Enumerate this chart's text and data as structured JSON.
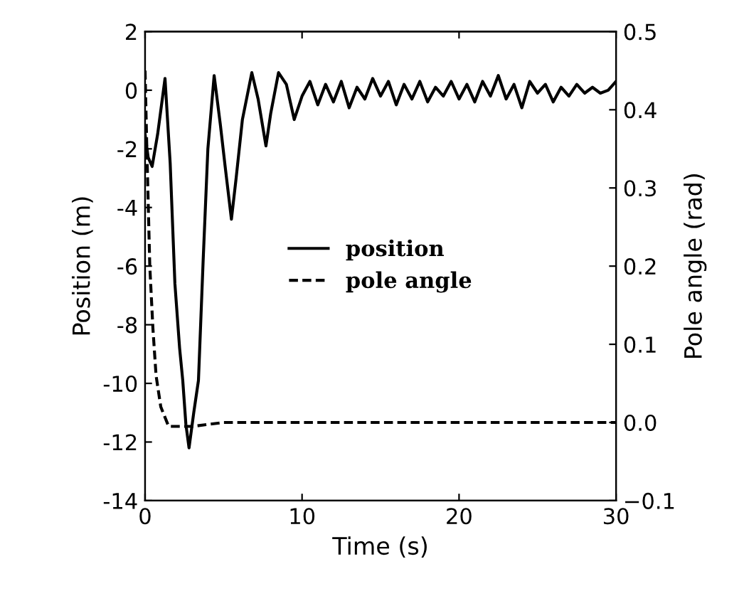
{
  "chart_data": {
    "type": "line",
    "xlabel": "Time (s)",
    "ylabel": "Position (m)",
    "y2label": "Pole angle (rad)",
    "series": [
      {
        "name": "position",
        "color": "#000000",
        "line_style": "solid",
        "x": [
          0,
          0.2,
          0.45,
          0.8,
          1.27,
          1.6,
          1.9,
          2.2,
          2.4,
          2.6,
          2.8,
          3.1,
          3.4,
          3.7,
          4.0,
          4.4,
          4.8,
          5.1,
          5.5,
          5.8,
          6.2,
          6.8,
          7.2,
          7.7,
          8.0,
          8.5,
          9.0,
          9.5,
          10.0,
          10.5,
          11.0,
          11.5,
          12.0,
          12.5,
          13.0,
          13.5,
          14.0,
          14.5,
          15.0,
          15.5,
          16.0,
          16.5,
          17.0,
          17.5,
          18.0,
          18.5,
          19.0,
          19.5,
          20.0,
          20.5,
          21.0,
          21.5,
          22.0,
          22.5,
          23.0,
          23.5,
          24.0,
          24.5,
          25.0,
          25.5,
          26.0,
          26.5,
          27.0,
          27.5,
          28.0,
          28.5,
          29.0,
          29.5,
          30.0
        ],
        "values": [
          -1.5,
          -2.3,
          -2.6,
          -1.5,
          0.4,
          -2.5,
          -6.6,
          -8.8,
          -9.9,
          -11.4,
          -12.2,
          -11.0,
          -9.9,
          -5.8,
          -2.0,
          0.5,
          -1.2,
          -2.6,
          -4.4,
          -3.0,
          -1.0,
          0.6,
          -0.3,
          -1.9,
          -0.8,
          0.6,
          0.2,
          -1.0,
          -0.2,
          0.3,
          -0.5,
          0.2,
          -0.4,
          0.3,
          -0.6,
          0.1,
          -0.3,
          0.4,
          -0.2,
          0.3,
          -0.5,
          0.2,
          -0.3,
          0.3,
          -0.4,
          0.1,
          -0.2,
          0.3,
          -0.3,
          0.2,
          -0.4,
          0.3,
          -0.2,
          0.5,
          -0.3,
          0.2,
          -0.6,
          0.3,
          -0.1,
          0.2,
          -0.4,
          0.1,
          -0.2,
          0.2,
          -0.1,
          0.1,
          -0.1,
          0.0,
          0.3
        ]
      },
      {
        "name": "pole angle",
        "color": "#000000",
        "line_style": "dashed",
        "axis": "y2",
        "x": [
          0,
          0.1,
          0.3,
          0.5,
          0.7,
          1.0,
          1.5,
          2.0,
          3.0,
          5.0,
          10.0,
          20.0,
          30.0
        ],
        "values": [
          0.45,
          0.36,
          0.2,
          0.12,
          0.06,
          0.02,
          -0.005,
          -0.005,
          -0.005,
          0.0,
          0.0,
          0.0,
          0.0
        ]
      }
    ],
    "xlim": [
      0,
      30
    ],
    "xticks": [
      0,
      10,
      20,
      30
    ],
    "ylim": [
      -14,
      2
    ],
    "yticks": [
      -14,
      -12,
      -10,
      -8,
      -6,
      -4,
      -2,
      0,
      2
    ],
    "y2lim": [
      -0.1,
      0.5
    ],
    "y2ticks": [
      {
        "value": -0.1,
        "label": "−0.1"
      },
      {
        "value": 0.0,
        "label": "0.0"
      },
      {
        "value": 0.1,
        "label": "0.1"
      },
      {
        "value": 0.2,
        "label": "0.2"
      },
      {
        "value": 0.3,
        "label": "0.3"
      },
      {
        "value": 0.4,
        "label": "0.4"
      },
      {
        "value": 0.5,
        "label": "0.5"
      }
    ],
    "grid": false,
    "legend": "center"
  }
}
